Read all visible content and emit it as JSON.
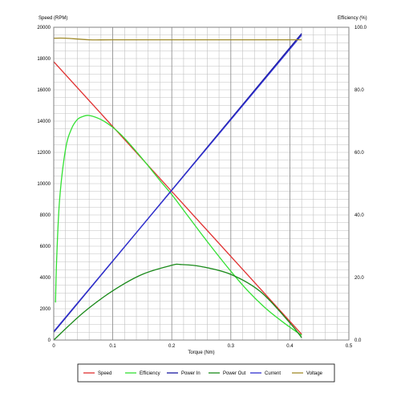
{
  "chart_data": {
    "type": "line",
    "xlabel": "Torque (Nm)",
    "ylabel_left": "Speed (RPM)",
    "ylabel_right": "Efficiency (%)",
    "xlim": [
      0,
      0.5
    ],
    "ylim_left": [
      0,
      20000
    ],
    "ylim_right": [
      0,
      100
    ],
    "x_ticks": [
      "0",
      "0.1",
      "0.2",
      "0.3",
      "0.4",
      "0.5"
    ],
    "y_left_ticks": [
      "0",
      "2000",
      "4000",
      "6000",
      "8000",
      "10000",
      "12000",
      "14000",
      "16000",
      "18000",
      "20000"
    ],
    "y_right_ticks": [
      "0.0",
      "20.0",
      "40.0",
      "60.0",
      "80.0",
      "100.0"
    ],
    "grid": true,
    "legend_placement": "bottom",
    "series": [
      {
        "name": "Speed",
        "color": "#e03030",
        "axis": "left",
        "x": [
          0,
          0.1,
          0.2,
          0.3,
          0.42
        ],
        "y": [
          17800,
          13650,
          9500,
          5350,
          370
        ]
      },
      {
        "name": "Efficiency",
        "color": "#33e033",
        "axis": "right",
        "x": [
          0.003,
          0.005,
          0.01,
          0.02,
          0.03,
          0.04,
          0.05,
          0.06,
          0.08,
          0.1,
          0.12,
          0.15,
          0.18,
          0.2,
          0.23,
          0.26,
          0.3,
          0.33,
          0.36,
          0.39,
          0.42
        ],
        "y": [
          12,
          26,
          45,
          61,
          67.5,
          70.5,
          71.5,
          71.8,
          70.5,
          68,
          64.5,
          58,
          51,
          46.5,
          39,
          31.5,
          22,
          15.5,
          10,
          5.5,
          1.5
        ]
      },
      {
        "name": "Power In",
        "color": "#1a1aa0",
        "axis": "left",
        "x": [
          0,
          0.42
        ],
        "y": [
          500,
          19600
        ]
      },
      {
        "name": "Power Out",
        "color": "#1a8a1a",
        "axis": "left",
        "x": [
          0,
          0.05,
          0.1,
          0.15,
          0.2,
          0.215,
          0.25,
          0.3,
          0.35,
          0.4,
          0.42
        ],
        "y": [
          0,
          1750,
          3150,
          4200,
          4780,
          4830,
          4700,
          4200,
          3100,
          1100,
          150
        ]
      },
      {
        "name": "Current",
        "color": "#3030d0",
        "axis": "left",
        "x": [
          0,
          0.42
        ],
        "y": [
          550,
          19500
        ]
      },
      {
        "name": "Voltage",
        "color": "#a08a2a",
        "axis": "left",
        "x": [
          0,
          0.02,
          0.06,
          0.1,
          0.2,
          0.3,
          0.42
        ],
        "y": [
          19300,
          19300,
          19200,
          19200,
          19200,
          19200,
          19200
        ]
      }
    ]
  }
}
